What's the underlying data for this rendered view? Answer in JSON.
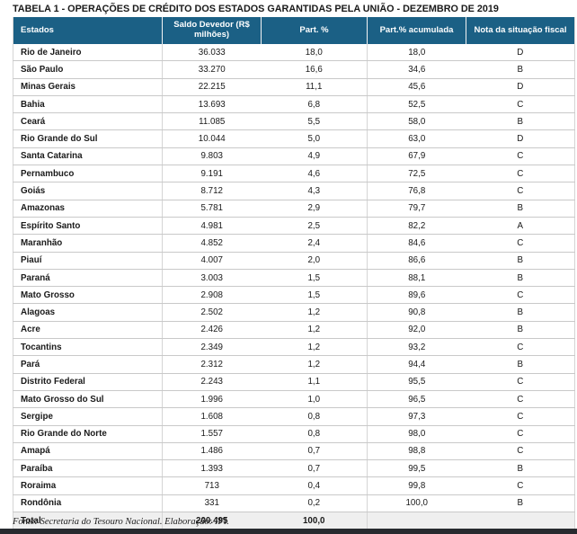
{
  "title": "TABELA 1 - OPERAÇÕES DE CRÉDITO DOS ESTADOS GARANTIDAS PELA UNIÃO - DEZEMBRO DE 2019",
  "colors": {
    "header_bg": "#1B6085",
    "accent_border": "#1B6085",
    "total_row_bg": "#EFEFEF",
    "bottom_bar": "#272A2F"
  },
  "table": {
    "columns": [
      "Estados",
      "Saldo Devedor (R$ milhões)",
      "Part. %",
      "Part.% acumulada",
      "Nota da situação fiscal"
    ],
    "rows": [
      {
        "estado": "Rio de Janeiro",
        "saldo": "36.033",
        "part": "18,0",
        "acumulada": "18,0",
        "nota": "D"
      },
      {
        "estado": "São Paulo",
        "saldo": "33.270",
        "part": "16,6",
        "acumulada": "34,6",
        "nota": "B"
      },
      {
        "estado": "Minas Gerais",
        "saldo": "22.215",
        "part": "11,1",
        "acumulada": "45,6",
        "nota": "D"
      },
      {
        "estado": "Bahia",
        "saldo": "13.693",
        "part": "6,8",
        "acumulada": "52,5",
        "nota": "C"
      },
      {
        "estado": "Ceará",
        "saldo": "11.085",
        "part": "5,5",
        "acumulada": "58,0",
        "nota": "B"
      },
      {
        "estado": "Rio Grande do Sul",
        "saldo": "10.044",
        "part": "5,0",
        "acumulada": "63,0",
        "nota": "D"
      },
      {
        "estado": "Santa Catarina",
        "saldo": "9.803",
        "part": "4,9",
        "acumulada": "67,9",
        "nota": "C"
      },
      {
        "estado": "Pernambuco",
        "saldo": "9.191",
        "part": "4,6",
        "acumulada": "72,5",
        "nota": "C"
      },
      {
        "estado": "Goiás",
        "saldo": "8.712",
        "part": "4,3",
        "acumulada": "76,8",
        "nota": "C"
      },
      {
        "estado": "Amazonas",
        "saldo": "5.781",
        "part": "2,9",
        "acumulada": "79,7",
        "nota": "B"
      },
      {
        "estado": "Espírito Santo",
        "saldo": "4.981",
        "part": "2,5",
        "acumulada": "82,2",
        "nota": "A"
      },
      {
        "estado": "Maranhão",
        "saldo": "4.852",
        "part": "2,4",
        "acumulada": "84,6",
        "nota": "C"
      },
      {
        "estado": "Piauí",
        "saldo": "4.007",
        "part": "2,0",
        "acumulada": "86,6",
        "nota": "B"
      },
      {
        "estado": "Paraná",
        "saldo": "3.003",
        "part": "1,5",
        "acumulada": "88,1",
        "nota": "B"
      },
      {
        "estado": "Mato Grosso",
        "saldo": "2.908",
        "part": "1,5",
        "acumulada": "89,6",
        "nota": "C"
      },
      {
        "estado": "Alagoas",
        "saldo": "2.502",
        "part": "1,2",
        "acumulada": "90,8",
        "nota": "B"
      },
      {
        "estado": "Acre",
        "saldo": "2.426",
        "part": "1,2",
        "acumulada": "92,0",
        "nota": "B"
      },
      {
        "estado": "Tocantins",
        "saldo": "2.349",
        "part": "1,2",
        "acumulada": "93,2",
        "nota": "C"
      },
      {
        "estado": "Pará",
        "saldo": "2.312",
        "part": "1,2",
        "acumulada": "94,4",
        "nota": "B"
      },
      {
        "estado": "Distrito Federal",
        "saldo": "2.243",
        "part": "1,1",
        "acumulada": "95,5",
        "nota": "C"
      },
      {
        "estado": "Mato Grosso do Sul",
        "saldo": "1.996",
        "part": "1,0",
        "acumulada": "96,5",
        "nota": "C"
      },
      {
        "estado": "Sergipe",
        "saldo": "1.608",
        "part": "0,8",
        "acumulada": "97,3",
        "nota": "C"
      },
      {
        "estado": "Rio Grande do Norte",
        "saldo": "1.557",
        "part": "0,8",
        "acumulada": "98,0",
        "nota": "C"
      },
      {
        "estado": "Amapá",
        "saldo": "1.486",
        "part": "0,7",
        "acumulada": "98,8",
        "nota": "C"
      },
      {
        "estado": "Paraíba",
        "saldo": "1.393",
        "part": "0,7",
        "acumulada": "99,5",
        "nota": "B"
      },
      {
        "estado": "Roraima",
        "saldo": "713",
        "part": "0,4",
        "acumulada": "99,8",
        "nota": "C"
      },
      {
        "estado": "Rondônia",
        "saldo": "331",
        "part": "0,2",
        "acumulada": "100,0",
        "nota": "B"
      }
    ],
    "total": {
      "estado": "Total",
      "saldo": "200.495",
      "part": "100,0",
      "acumulada": "",
      "nota": ""
    }
  },
  "footer": {
    "fonte": "Fonte: Secretaria do Tesouro Nacional. Elaboração: IFI."
  }
}
